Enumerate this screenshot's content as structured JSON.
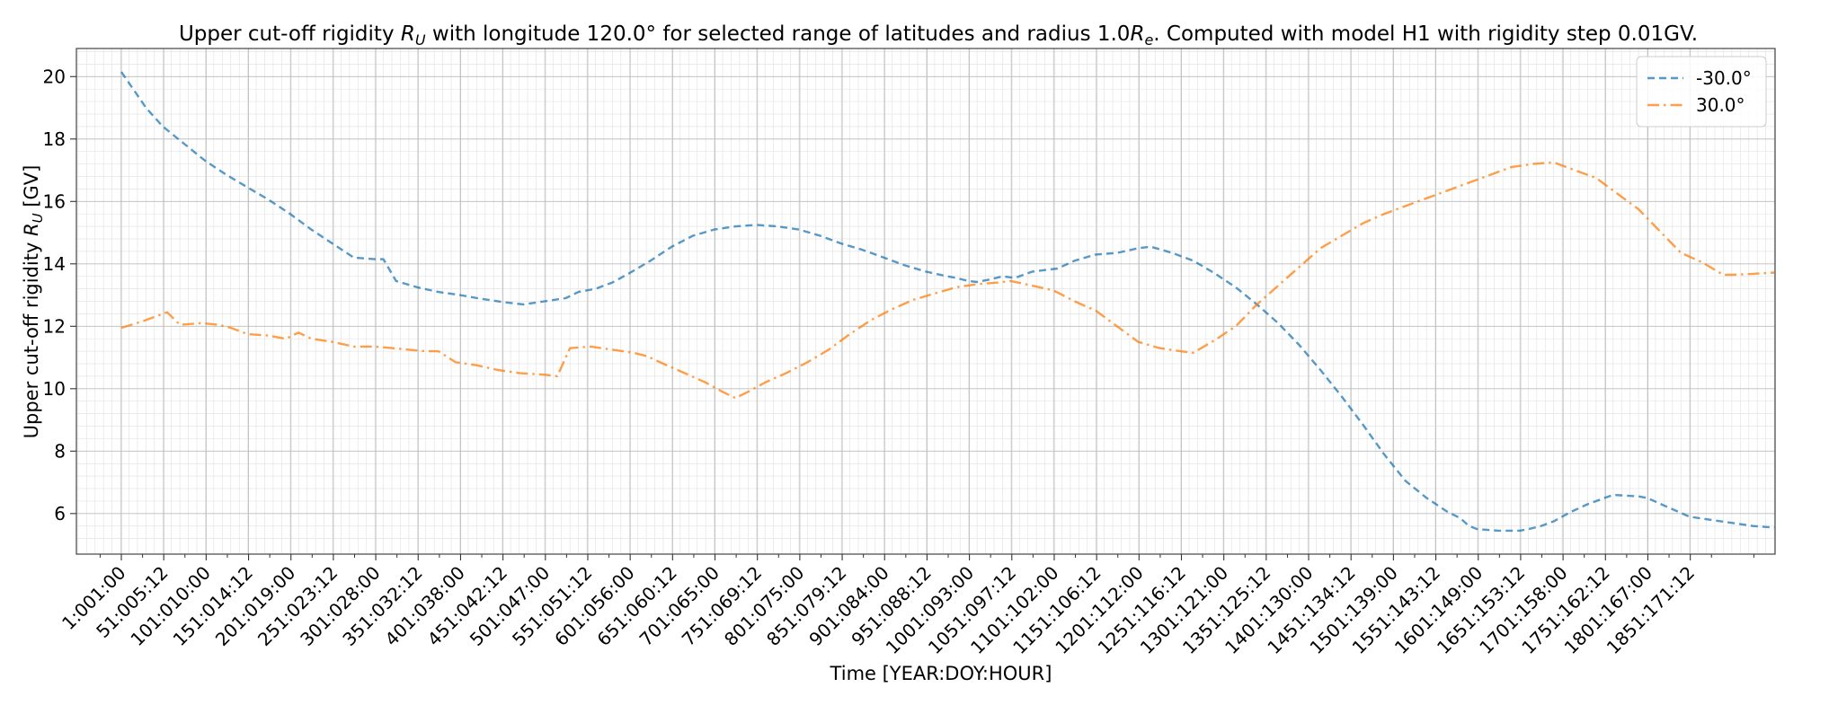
{
  "chart_data": {
    "type": "line",
    "title": {
      "prefix": "Upper cut-off rigidity ",
      "sym": "R",
      "sub": "U",
      "mid": " with longitude 120.0° for selected range of latitudes and radius 1.0",
      "sym2": "R",
      "sub2": "e",
      "suffix": ". Computed with model H1 with rigidity step 0.01GV."
    },
    "xlabel": "Time [YEAR:DOY:HOUR]",
    "ylabel": {
      "prefix": "Upper cut-off rigidity ",
      "sym": "R",
      "sub": "U",
      "suffix": " [GV]"
    },
    "xlim": [
      -52,
      1951
    ],
    "ylim": [
      4.7,
      20.9
    ],
    "yticks": [
      6,
      8,
      10,
      12,
      14,
      16,
      18,
      20
    ],
    "xticks": [
      {
        "x": 1,
        "label": "1:001:00"
      },
      {
        "x": 51,
        "label": "51:005:12"
      },
      {
        "x": 101,
        "label": "101:010:00"
      },
      {
        "x": 151,
        "label": "151:014:12"
      },
      {
        "x": 201,
        "label": "201:019:00"
      },
      {
        "x": 251,
        "label": "251:023:12"
      },
      {
        "x": 301,
        "label": "301:028:00"
      },
      {
        "x": 351,
        "label": "351:032:12"
      },
      {
        "x": 401,
        "label": "401:038:00"
      },
      {
        "x": 451,
        "label": "451:042:12"
      },
      {
        "x": 501,
        "label": "501:047:00"
      },
      {
        "x": 551,
        "label": "551:051:12"
      },
      {
        "x": 601,
        "label": "601:056:00"
      },
      {
        "x": 651,
        "label": "651:060:12"
      },
      {
        "x": 701,
        "label": "701:065:00"
      },
      {
        "x": 751,
        "label": "751:069:12"
      },
      {
        "x": 801,
        "label": "801:075:00"
      },
      {
        "x": 851,
        "label": "851:079:12"
      },
      {
        "x": 901,
        "label": "901:084:00"
      },
      {
        "x": 951,
        "label": "951:088:12"
      },
      {
        "x": 1001,
        "label": "1001:093:00"
      },
      {
        "x": 1051,
        "label": "1051:097:12"
      },
      {
        "x": 1101,
        "label": "1101:102:00"
      },
      {
        "x": 1151,
        "label": "1151:106:12"
      },
      {
        "x": 1201,
        "label": "1201:112:00"
      },
      {
        "x": 1251,
        "label": "1251:116:12"
      },
      {
        "x": 1301,
        "label": "1301:121:00"
      },
      {
        "x": 1351,
        "label": "1351:125:12"
      },
      {
        "x": 1401,
        "label": "1401:130:00"
      },
      {
        "x": 1451,
        "label": "1451:134:12"
      },
      {
        "x": 1501,
        "label": "1501:139:00"
      },
      {
        "x": 1551,
        "label": "1551:143:12"
      },
      {
        "x": 1601,
        "label": "1601:149:00"
      },
      {
        "x": 1651,
        "label": "1651:153:12"
      },
      {
        "x": 1701,
        "label": "1701:158:00"
      },
      {
        "x": 1751,
        "label": "1751:162:12"
      },
      {
        "x": 1801,
        "label": "1801:167:00"
      },
      {
        "x": 1851,
        "label": "1851:171:12"
      }
    ],
    "grid": true,
    "legend_position": "top-right",
    "series": [
      {
        "name": "-30.0°",
        "color": "#1f77b4",
        "style": "dashed",
        "points": [
          [
            1,
            20.15
          ],
          [
            15,
            19.6
          ],
          [
            30,
            19.0
          ],
          [
            50,
            18.4
          ],
          [
            75,
            17.85
          ],
          [
            100,
            17.3
          ],
          [
            125,
            16.85
          ],
          [
            150,
            16.45
          ],
          [
            175,
            16.05
          ],
          [
            200,
            15.6
          ],
          [
            225,
            15.1
          ],
          [
            250,
            14.65
          ],
          [
            275,
            14.2
          ],
          [
            300,
            14.15
          ],
          [
            310,
            14.15
          ],
          [
            325,
            13.45
          ],
          [
            350,
            13.25
          ],
          [
            375,
            13.1
          ],
          [
            400,
            13.0
          ],
          [
            425,
            12.88
          ],
          [
            450,
            12.78
          ],
          [
            475,
            12.7
          ],
          [
            500,
            12.8
          ],
          [
            525,
            12.9
          ],
          [
            540,
            13.1
          ],
          [
            560,
            13.2
          ],
          [
            580,
            13.4
          ],
          [
            600,
            13.7
          ],
          [
            625,
            14.1
          ],
          [
            650,
            14.55
          ],
          [
            675,
            14.9
          ],
          [
            700,
            15.1
          ],
          [
            725,
            15.2
          ],
          [
            750,
            15.25
          ],
          [
            775,
            15.2
          ],
          [
            800,
            15.1
          ],
          [
            825,
            14.9
          ],
          [
            850,
            14.65
          ],
          [
            875,
            14.45
          ],
          [
            900,
            14.2
          ],
          [
            925,
            13.95
          ],
          [
            950,
            13.75
          ],
          [
            975,
            13.6
          ],
          [
            985,
            13.55
          ],
          [
            1000,
            13.45
          ],
          [
            1010,
            13.42
          ],
          [
            1025,
            13.5
          ],
          [
            1040,
            13.6
          ],
          [
            1055,
            13.55
          ],
          [
            1075,
            13.75
          ],
          [
            1090,
            13.8
          ],
          [
            1105,
            13.85
          ],
          [
            1125,
            14.1
          ],
          [
            1150,
            14.3
          ],
          [
            1175,
            14.35
          ],
          [
            1200,
            14.5
          ],
          [
            1215,
            14.55
          ],
          [
            1240,
            14.35
          ],
          [
            1265,
            14.1
          ],
          [
            1290,
            13.7
          ],
          [
            1315,
            13.25
          ],
          [
            1340,
            12.7
          ],
          [
            1365,
            12.1
          ],
          [
            1390,
            11.4
          ],
          [
            1415,
            10.6
          ],
          [
            1440,
            9.75
          ],
          [
            1465,
            8.85
          ],
          [
            1490,
            7.9
          ],
          [
            1515,
            7.05
          ],
          [
            1540,
            6.5
          ],
          [
            1565,
            6.05
          ],
          [
            1580,
            5.85
          ],
          [
            1590,
            5.6
          ],
          [
            1600,
            5.5
          ],
          [
            1625,
            5.45
          ],
          [
            1650,
            5.45
          ],
          [
            1660,
            5.5
          ],
          [
            1675,
            5.6
          ],
          [
            1690,
            5.75
          ],
          [
            1710,
            6.05
          ],
          [
            1730,
            6.3
          ],
          [
            1760,
            6.6
          ],
          [
            1790,
            6.55
          ],
          [
            1800,
            6.5
          ],
          [
            1825,
            6.2
          ],
          [
            1850,
            5.9
          ],
          [
            1875,
            5.8
          ],
          [
            1900,
            5.7
          ],
          [
            1925,
            5.6
          ],
          [
            1950,
            5.55
          ]
        ]
      },
      {
        "name": "30.0°",
        "color": "#ff7f0e",
        "style": "dashdot",
        "points": [
          [
            1,
            11.95
          ],
          [
            25,
            12.15
          ],
          [
            45,
            12.35
          ],
          [
            55,
            12.45
          ],
          [
            70,
            12.05
          ],
          [
            95,
            12.1
          ],
          [
            115,
            12.05
          ],
          [
            130,
            11.95
          ],
          [
            150,
            11.75
          ],
          [
            175,
            11.7
          ],
          [
            195,
            11.6
          ],
          [
            210,
            11.8
          ],
          [
            225,
            11.6
          ],
          [
            250,
            11.5
          ],
          [
            275,
            11.35
          ],
          [
            300,
            11.35
          ],
          [
            320,
            11.3
          ],
          [
            340,
            11.25
          ],
          [
            360,
            11.2
          ],
          [
            375,
            11.2
          ],
          [
            395,
            10.85
          ],
          [
            420,
            10.75
          ],
          [
            445,
            10.6
          ],
          [
            470,
            10.5
          ],
          [
            500,
            10.45
          ],
          [
            515,
            10.4
          ],
          [
            530,
            11.3
          ],
          [
            555,
            11.35
          ],
          [
            580,
            11.25
          ],
          [
            605,
            11.15
          ],
          [
            620,
            11.05
          ],
          [
            640,
            10.8
          ],
          [
            665,
            10.5
          ],
          [
            690,
            10.2
          ],
          [
            710,
            9.9
          ],
          [
            725,
            9.7
          ],
          [
            740,
            9.9
          ],
          [
            760,
            10.2
          ],
          [
            785,
            10.5
          ],
          [
            810,
            10.85
          ],
          [
            835,
            11.25
          ],
          [
            860,
            11.75
          ],
          [
            885,
            12.2
          ],
          [
            910,
            12.55
          ],
          [
            935,
            12.85
          ],
          [
            960,
            13.05
          ],
          [
            985,
            13.25
          ],
          [
            1010,
            13.35
          ],
          [
            1035,
            13.4
          ],
          [
            1050,
            13.45
          ],
          [
            1075,
            13.3
          ],
          [
            1100,
            13.15
          ],
          [
            1125,
            12.8
          ],
          [
            1150,
            12.5
          ],
          [
            1175,
            12.0
          ],
          [
            1200,
            11.5
          ],
          [
            1225,
            11.3
          ],
          [
            1250,
            11.2
          ],
          [
            1265,
            11.15
          ],
          [
            1290,
            11.55
          ],
          [
            1315,
            12.0
          ],
          [
            1340,
            12.7
          ],
          [
            1365,
            13.3
          ],
          [
            1390,
            13.9
          ],
          [
            1415,
            14.5
          ],
          [
            1440,
            14.9
          ],
          [
            1465,
            15.3
          ],
          [
            1490,
            15.6
          ],
          [
            1515,
            15.85
          ],
          [
            1540,
            16.1
          ],
          [
            1565,
            16.35
          ],
          [
            1590,
            16.6
          ],
          [
            1615,
            16.85
          ],
          [
            1640,
            17.1
          ],
          [
            1665,
            17.2
          ],
          [
            1690,
            17.25
          ],
          [
            1715,
            17.0
          ],
          [
            1740,
            16.75
          ],
          [
            1765,
            16.25
          ],
          [
            1790,
            15.75
          ],
          [
            1815,
            15.05
          ],
          [
            1840,
            14.35
          ],
          [
            1865,
            14.05
          ],
          [
            1890,
            13.65
          ],
          [
            1900,
            13.65
          ],
          [
            1925,
            13.68
          ],
          [
            1950,
            13.72
          ]
        ]
      }
    ]
  }
}
